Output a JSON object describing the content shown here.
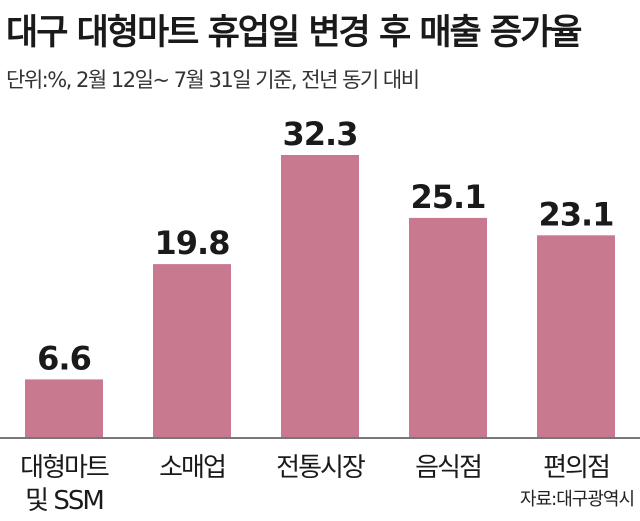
{
  "title": "대구 대형마트 휴업일 변경 후 매출 증가율",
  "subtitle": "단위:%, 2월 12일~ 7월 31일 기준, 전년 동기 대비",
  "source": "자료:대구광역시",
  "chart_data": {
    "type": "bar",
    "categories": [
      [
        "대형마트",
        "및 SSM"
      ],
      [
        "소매업"
      ],
      [
        "전통시장"
      ],
      [
        "음식점"
      ],
      [
        "편의점"
      ]
    ],
    "values": [
      6.6,
      19.8,
      32.3,
      25.1,
      23.1
    ],
    "value_labels": [
      "6.6",
      "19.8",
      "32.3",
      "25.1",
      "23.1"
    ],
    "ylim": [
      0,
      32.3
    ],
    "grid": false,
    "legend": "none",
    "bar_color": "#c9798f",
    "axis_color": "#777777"
  }
}
